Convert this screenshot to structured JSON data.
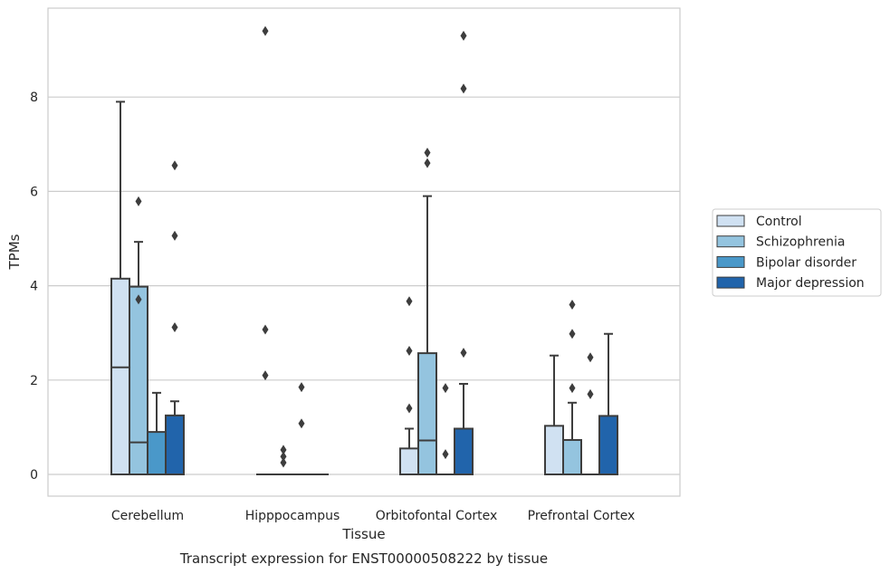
{
  "chart_data": {
    "type": "box",
    "title": "Transcript expression for ENST00000508222 by tissue",
    "xlabel": "Tissue",
    "ylabel": "TPMs",
    "ylim": [
      -0.45,
      9.8
    ],
    "yticks": [
      0,
      2,
      4,
      6,
      8
    ],
    "grid": true,
    "legend_position": "right",
    "categories": [
      "Cerebellum",
      "Hipppocampus",
      "Orbitofontal Cortex",
      "Prefrontal Cortex"
    ],
    "series": [
      {
        "name": "Control",
        "color": "#d0e1f2",
        "boxes": [
          {
            "min": 0,
            "q1": 0,
            "median": 2.27,
            "q3": 4.15,
            "max": 7.9,
            "outliers": []
          },
          {
            "min": 0,
            "q1": 0,
            "median": 0,
            "q3": 0,
            "max": 0,
            "outliers": [
              9.4,
              3.07,
              2.1
            ]
          },
          {
            "min": 0,
            "q1": 0,
            "median": 0,
            "q3": 0.55,
            "max": 0.97,
            "outliers": [
              3.67,
              2.62,
              1.4
            ]
          },
          {
            "min": 0,
            "q1": 0,
            "median": 0,
            "q3": 1.03,
            "max": 2.52,
            "outliers": []
          }
        ]
      },
      {
        "name": "Schizophrenia",
        "color": "#94c4df",
        "boxes": [
          {
            "min": 0,
            "q1": 0,
            "median": 0.68,
            "q3": 3.98,
            "max": 4.93,
            "outliers": [
              5.79,
              3.71
            ]
          },
          {
            "min": 0,
            "q1": 0,
            "median": 0,
            "q3": 0,
            "max": 0,
            "outliers": [
              0.52,
              0.38,
              0.25
            ]
          },
          {
            "min": 0,
            "q1": 0,
            "median": 0.72,
            "q3": 2.57,
            "max": 5.9,
            "outliers": [
              6.82,
              6.6
            ]
          },
          {
            "min": 0,
            "q1": 0,
            "median": 0,
            "q3": 0.73,
            "max": 1.52,
            "outliers": [
              3.6,
              2.98,
              1.83
            ]
          }
        ]
      },
      {
        "name": "Bipolar disorder",
        "color": "#4a98c9",
        "boxes": [
          {
            "min": 0,
            "q1": 0,
            "median": 0,
            "q3": 0.9,
            "max": 1.73,
            "outliers": []
          },
          {
            "min": 0,
            "q1": 0,
            "median": 0,
            "q3": 0,
            "max": 0,
            "outliers": [
              1.85,
              1.08
            ]
          },
          {
            "min": 0,
            "q1": 0,
            "median": 0,
            "q3": 0,
            "max": 0,
            "outliers": [
              1.83,
              0.43
            ]
          },
          {
            "min": 0,
            "q1": 0,
            "median": 0,
            "q3": 0,
            "max": 0,
            "outliers": [
              2.48,
              1.7
            ]
          }
        ]
      },
      {
        "name": "Major depression",
        "color": "#2164ab",
        "boxes": [
          {
            "min": 0,
            "q1": 0,
            "median": 0,
            "q3": 1.25,
            "max": 1.55,
            "outliers": [
              6.55,
              5.06,
              3.12
            ]
          },
          {
            "min": 0,
            "q1": 0,
            "median": 0,
            "q3": 0,
            "max": 0,
            "outliers": []
          },
          {
            "min": 0,
            "q1": 0,
            "median": 0,
            "q3": 0.97,
            "max": 1.92,
            "outliers": [
              9.3,
              8.18,
              2.58
            ]
          },
          {
            "min": 0,
            "q1": 0,
            "median": 0,
            "q3": 1.24,
            "max": 2.98,
            "outliers": []
          }
        ]
      }
    ]
  }
}
